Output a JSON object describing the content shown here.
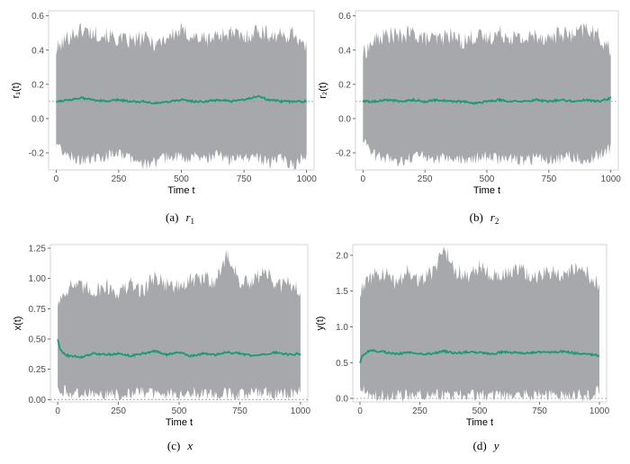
{
  "colors": {
    "band": "#a6a8ab",
    "mean_line": "#179c72",
    "reference_line": "#9a9a9a",
    "panel_border": "#cccccc"
  },
  "chart_data": [
    {
      "type": "area",
      "panel": "a",
      "caption_prefix": "(a)",
      "caption_symbol": "r",
      "caption_subscript": "1",
      "xlabel": "Time t",
      "ylabel": "r₁(t)",
      "xlim": [
        -30,
        1030
      ],
      "ylim": [
        -0.3,
        0.63
      ],
      "xticks": [
        0,
        250,
        500,
        750,
        1000
      ],
      "yticks": [
        -0.2,
        0.0,
        0.2,
        0.4,
        0.6
      ],
      "ytick_labels": [
        "-0.2",
        "0.0",
        "0.2",
        "0.4",
        "0.6"
      ],
      "reference_y": 0.1,
      "grid": false,
      "series": [
        {
          "role": "band",
          "x": [
            0,
            50,
            100,
            150,
            200,
            250,
            300,
            350,
            400,
            450,
            500,
            550,
            600,
            650,
            700,
            750,
            800,
            850,
            900,
            950,
            1000
          ],
          "upper": [
            0.4,
            0.48,
            0.52,
            0.5,
            0.49,
            0.46,
            0.45,
            0.47,
            0.44,
            0.48,
            0.51,
            0.48,
            0.46,
            0.49,
            0.5,
            0.47,
            0.52,
            0.49,
            0.48,
            0.5,
            0.4
          ],
          "lower": [
            -0.16,
            -0.22,
            -0.24,
            -0.23,
            -0.22,
            -0.21,
            -0.24,
            -0.27,
            -0.25,
            -0.22,
            -0.23,
            -0.22,
            -0.24,
            -0.21,
            -0.25,
            -0.23,
            -0.22,
            -0.26,
            -0.24,
            -0.27,
            -0.2
          ]
        },
        {
          "role": "mean",
          "x": [
            0,
            50,
            100,
            150,
            200,
            250,
            300,
            350,
            400,
            450,
            500,
            550,
            600,
            650,
            700,
            750,
            800,
            850,
            900,
            950,
            1000
          ],
          "values": [
            0.1,
            0.11,
            0.12,
            0.11,
            0.1,
            0.11,
            0.1,
            0.1,
            0.09,
            0.1,
            0.11,
            0.1,
            0.1,
            0.11,
            0.1,
            0.11,
            0.13,
            0.11,
            0.1,
            0.1,
            0.1
          ]
        }
      ]
    },
    {
      "type": "area",
      "panel": "b",
      "caption_prefix": "(b)",
      "caption_symbol": "r",
      "caption_subscript": "2",
      "xlabel": "Time t",
      "ylabel": "r₂(t)",
      "xlim": [
        -30,
        1030
      ],
      "ylim": [
        -0.3,
        0.63
      ],
      "xticks": [
        0,
        250,
        500,
        750,
        1000
      ],
      "yticks": [
        -0.2,
        0.0,
        0.2,
        0.4,
        0.6
      ],
      "ytick_labels": [
        "-0.2",
        "0.0",
        "0.2",
        "0.4",
        "0.6"
      ],
      "reference_y": 0.1,
      "grid": false,
      "series": [
        {
          "role": "band",
          "x": [
            0,
            50,
            100,
            150,
            200,
            250,
            300,
            350,
            400,
            450,
            500,
            550,
            600,
            650,
            700,
            750,
            800,
            850,
            900,
            950,
            1000
          ],
          "upper": [
            0.38,
            0.46,
            0.49,
            0.48,
            0.5,
            0.47,
            0.46,
            0.49,
            0.45,
            0.48,
            0.47,
            0.5,
            0.48,
            0.46,
            0.49,
            0.47,
            0.5,
            0.48,
            0.53,
            0.48,
            0.4
          ],
          "lower": [
            -0.14,
            -0.22,
            -0.23,
            -0.25,
            -0.22,
            -0.21,
            -0.24,
            -0.22,
            -0.25,
            -0.23,
            -0.22,
            -0.24,
            -0.23,
            -0.25,
            -0.22,
            -0.24,
            -0.23,
            -0.22,
            -0.25,
            -0.21,
            -0.17
          ]
        },
        {
          "role": "mean",
          "x": [
            0,
            50,
            100,
            150,
            200,
            250,
            300,
            350,
            400,
            450,
            500,
            550,
            600,
            650,
            700,
            750,
            800,
            850,
            900,
            950,
            1000
          ],
          "values": [
            0.1,
            0.1,
            0.11,
            0.1,
            0.11,
            0.1,
            0.11,
            0.1,
            0.1,
            0.09,
            0.1,
            0.11,
            0.1,
            0.1,
            0.11,
            0.1,
            0.11,
            0.1,
            0.11,
            0.1,
            0.12
          ]
        }
      ]
    },
    {
      "type": "area",
      "panel": "c",
      "caption_prefix": "(c)",
      "caption_symbol": "x",
      "caption_subscript": "",
      "xlabel": "Time t",
      "ylabel": "x(t)",
      "xlim": [
        -30,
        1030
      ],
      "ylim": [
        -0.02,
        1.28
      ],
      "xticks": [
        0,
        250,
        500,
        750,
        1000
      ],
      "yticks": [
        0.0,
        0.25,
        0.5,
        0.75,
        1.0,
        1.25
      ],
      "ytick_labels": [
        "0.00",
        "0.25",
        "0.50",
        "0.75",
        "1.00",
        "1.25"
      ],
      "reference_y": 0.0,
      "grid": false,
      "series": [
        {
          "role": "band",
          "x": [
            0,
            50,
            100,
            150,
            200,
            250,
            300,
            350,
            400,
            450,
            500,
            550,
            600,
            650,
            700,
            750,
            800,
            850,
            900,
            950,
            1000
          ],
          "upper": [
            0.8,
            0.95,
            0.92,
            0.9,
            0.94,
            0.88,
            0.95,
            0.9,
            1.02,
            0.95,
            0.93,
            0.98,
            1.0,
            0.98,
            1.2,
            0.97,
            0.95,
            1.08,
            0.93,
            0.96,
            0.9
          ],
          "lower": [
            0.1,
            0.05,
            0.04,
            0.06,
            0.05,
            0.04,
            0.05,
            0.06,
            0.04,
            0.05,
            0.04,
            0.05,
            0.06,
            0.04,
            0.05,
            0.04,
            0.05,
            0.06,
            0.04,
            0.05,
            0.06
          ]
        },
        {
          "role": "mean",
          "x": [
            0,
            10,
            30,
            50,
            100,
            150,
            200,
            250,
            300,
            350,
            400,
            450,
            500,
            550,
            600,
            650,
            700,
            750,
            800,
            850,
            900,
            950,
            1000
          ],
          "values": [
            0.5,
            0.42,
            0.37,
            0.36,
            0.35,
            0.38,
            0.37,
            0.38,
            0.36,
            0.38,
            0.4,
            0.37,
            0.39,
            0.36,
            0.38,
            0.37,
            0.39,
            0.38,
            0.36,
            0.37,
            0.39,
            0.37,
            0.38
          ]
        }
      ]
    },
    {
      "type": "area",
      "panel": "d",
      "caption_prefix": "(d)",
      "caption_symbol": "y",
      "caption_subscript": "",
      "xlabel": "Time t",
      "ylabel": "y(t)",
      "xlim": [
        -30,
        1030
      ],
      "ylim": [
        -0.05,
        2.15
      ],
      "xticks": [
        0,
        250,
        500,
        750,
        1000
      ],
      "yticks": [
        0.0,
        0.5,
        1.0,
        1.5,
        2.0
      ],
      "ytick_labels": [
        "0.0",
        "0.5",
        "1.0",
        "1.5",
        "2.0"
      ],
      "reference_y": 0.0,
      "grid": false,
      "series": [
        {
          "role": "band",
          "x": [
            0,
            50,
            100,
            150,
            200,
            250,
            300,
            350,
            400,
            450,
            500,
            550,
            600,
            650,
            700,
            750,
            800,
            850,
            900,
            950,
            1000
          ],
          "upper": [
            1.5,
            1.7,
            1.75,
            1.6,
            1.8,
            1.65,
            1.75,
            2.1,
            1.8,
            1.7,
            1.85,
            1.75,
            1.7,
            1.8,
            1.75,
            1.7,
            1.78,
            1.72,
            1.8,
            1.75,
            1.6
          ],
          "lower": [
            0.15,
            0.05,
            0.04,
            0.05,
            0.03,
            0.05,
            0.04,
            0.05,
            0.04,
            0.05,
            0.04,
            0.05,
            0.03,
            0.05,
            0.04,
            0.05,
            0.04,
            0.03,
            0.05,
            0.04,
            0.1
          ]
        },
        {
          "role": "mean",
          "x": [
            0,
            10,
            30,
            50,
            100,
            150,
            200,
            250,
            300,
            350,
            400,
            450,
            500,
            550,
            600,
            650,
            700,
            750,
            800,
            850,
            900,
            950,
            1000
          ],
          "values": [
            0.5,
            0.6,
            0.65,
            0.67,
            0.65,
            0.62,
            0.64,
            0.63,
            0.62,
            0.66,
            0.63,
            0.65,
            0.64,
            0.62,
            0.65,
            0.64,
            0.63,
            0.65,
            0.64,
            0.66,
            0.63,
            0.62,
            0.6
          ]
        }
      ]
    }
  ]
}
